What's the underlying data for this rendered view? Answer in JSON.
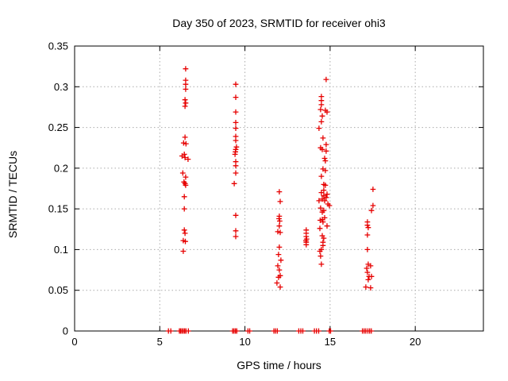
{
  "title": "Day 350 of 2023, SRMTID for receiver ohi3",
  "chart_data": {
    "type": "scatter",
    "title": "Day 350 of 2023, SRMTID for receiver ohi3",
    "xlabel": "GPS time / hours",
    "ylabel": "SRMTID / TECUs",
    "xlim": [
      0,
      24
    ],
    "ylim": [
      0,
      0.35
    ],
    "xticks": [
      0,
      5,
      10,
      15,
      20
    ],
    "xtick_labels": [
      "0",
      "5",
      "10",
      "15",
      "20"
    ],
    "yticks": [
      0,
      0.05,
      0.1,
      0.15,
      0.2,
      0.25,
      0.3,
      0.35
    ],
    "ytick_labels": [
      "0",
      "0.05",
      "0.1",
      "0.15",
      "0.2",
      "0.25",
      "0.3",
      "0.35"
    ],
    "grid": true,
    "legend": "none",
    "marker": "plus",
    "marker_color": "#e60000",
    "grid_color": "#aaaaaa",
    "axis_color": "#000000",
    "series": [
      {
        "name": "srmtid",
        "points": [
          [
            6.52,
            0.322
          ],
          [
            6.52,
            0.308
          ],
          [
            6.52,
            0.303
          ],
          [
            6.52,
            0.297
          ],
          [
            6.48,
            0.284
          ],
          [
            6.52,
            0.28
          ],
          [
            6.48,
            0.276
          ],
          [
            6.48,
            0.238
          ],
          [
            6.4,
            0.231
          ],
          [
            6.54,
            0.23
          ],
          [
            6.44,
            0.217
          ],
          [
            6.31,
            0.215
          ],
          [
            6.48,
            0.213
          ],
          [
            6.66,
            0.211
          ],
          [
            6.35,
            0.194
          ],
          [
            6.52,
            0.189
          ],
          [
            6.42,
            0.183
          ],
          [
            6.48,
            0.181
          ],
          [
            6.52,
            0.179
          ],
          [
            6.44,
            0.165
          ],
          [
            6.44,
            0.15
          ],
          [
            6.44,
            0.124
          ],
          [
            6.48,
            0.12
          ],
          [
            6.38,
            0.111
          ],
          [
            6.5,
            0.11
          ],
          [
            6.38,
            0.098
          ],
          [
            9.46,
            0.303
          ],
          [
            9.46,
            0.287
          ],
          [
            9.46,
            0.269
          ],
          [
            9.46,
            0.256
          ],
          [
            9.46,
            0.249
          ],
          [
            9.46,
            0.239
          ],
          [
            9.46,
            0.234
          ],
          [
            9.5,
            0.226
          ],
          [
            9.46,
            0.223
          ],
          [
            9.44,
            0.22
          ],
          [
            9.42,
            0.217
          ],
          [
            9.46,
            0.208
          ],
          [
            9.46,
            0.203
          ],
          [
            9.46,
            0.194
          ],
          [
            9.37,
            0.181
          ],
          [
            9.46,
            0.142
          ],
          [
            9.46,
            0.123
          ],
          [
            9.46,
            0.116
          ],
          [
            12.02,
            0.171
          ],
          [
            12.07,
            0.159
          ],
          [
            12.02,
            0.141
          ],
          [
            12.0,
            0.138
          ],
          [
            12.04,
            0.135
          ],
          [
            12.02,
            0.129
          ],
          [
            11.93,
            0.122
          ],
          [
            12.07,
            0.121
          ],
          [
            12.02,
            0.103
          ],
          [
            11.97,
            0.094
          ],
          [
            12.11,
            0.087
          ],
          [
            11.93,
            0.08
          ],
          [
            12.02,
            0.075
          ],
          [
            12.07,
            0.068
          ],
          [
            11.97,
            0.066
          ],
          [
            11.88,
            0.059
          ],
          [
            12.07,
            0.054
          ],
          [
            13.6,
            0.124
          ],
          [
            13.6,
            0.12
          ],
          [
            13.6,
            0.116
          ],
          [
            13.62,
            0.113
          ],
          [
            13.58,
            0.111
          ],
          [
            13.6,
            0.109
          ],
          [
            13.6,
            0.106
          ],
          [
            14.77,
            0.309
          ],
          [
            14.49,
            0.288
          ],
          [
            14.49,
            0.283
          ],
          [
            14.49,
            0.278
          ],
          [
            14.44,
            0.272
          ],
          [
            14.72,
            0.271
          ],
          [
            14.82,
            0.269
          ],
          [
            14.54,
            0.264
          ],
          [
            14.49,
            0.257
          ],
          [
            14.35,
            0.249
          ],
          [
            14.58,
            0.237
          ],
          [
            14.77,
            0.229
          ],
          [
            14.44,
            0.225
          ],
          [
            14.54,
            0.223
          ],
          [
            14.77,
            0.221
          ],
          [
            14.68,
            0.212
          ],
          [
            14.72,
            0.209
          ],
          [
            14.58,
            0.199
          ],
          [
            14.72,
            0.197
          ],
          [
            14.49,
            0.19
          ],
          [
            14.63,
            0.18
          ],
          [
            14.72,
            0.179
          ],
          [
            14.63,
            0.173
          ],
          [
            14.49,
            0.17
          ],
          [
            14.82,
            0.168
          ],
          [
            14.63,
            0.166
          ],
          [
            14.77,
            0.164
          ],
          [
            14.54,
            0.162
          ],
          [
            14.35,
            0.16
          ],
          [
            14.68,
            0.16
          ],
          [
            14.87,
            0.156
          ],
          [
            14.96,
            0.154
          ],
          [
            14.44,
            0.151
          ],
          [
            14.63,
            0.148
          ],
          [
            14.54,
            0.146
          ],
          [
            14.68,
            0.139
          ],
          [
            14.54,
            0.137
          ],
          [
            14.58,
            0.134
          ],
          [
            14.82,
            0.129
          ],
          [
            14.42,
            0.136
          ],
          [
            14.4,
            0.126
          ],
          [
            14.54,
            0.117
          ],
          [
            14.63,
            0.114
          ],
          [
            14.58,
            0.109
          ],
          [
            14.58,
            0.105
          ],
          [
            14.49,
            0.1
          ],
          [
            14.4,
            0.098
          ],
          [
            14.44,
            0.092
          ],
          [
            14.49,
            0.082
          ],
          [
            17.52,
            0.174
          ],
          [
            17.52,
            0.154
          ],
          [
            17.43,
            0.148
          ],
          [
            17.19,
            0.134
          ],
          [
            17.19,
            0.13
          ],
          [
            17.24,
            0.127
          ],
          [
            17.19,
            0.118
          ],
          [
            17.19,
            0.1
          ],
          [
            17.24,
            0.082
          ],
          [
            17.38,
            0.08
          ],
          [
            17.15,
            0.077
          ],
          [
            17.19,
            0.072
          ],
          [
            17.43,
            0.067
          ],
          [
            17.29,
            0.067
          ],
          [
            17.24,
            0.063
          ],
          [
            17.1,
            0.054
          ],
          [
            17.38,
            0.053
          ],
          [
            5.51,
            0
          ],
          [
            5.65,
            0
          ],
          [
            6.15,
            0
          ],
          [
            6.22,
            0
          ],
          [
            6.3,
            0
          ],
          [
            6.38,
            0
          ],
          [
            6.46,
            0
          ],
          [
            6.54,
            0
          ],
          [
            6.68,
            0
          ],
          [
            9.28,
            0
          ],
          [
            9.36,
            0
          ],
          [
            9.44,
            0
          ],
          [
            9.52,
            0
          ],
          [
            10.18,
            0
          ],
          [
            10.28,
            0
          ],
          [
            11.7,
            0
          ],
          [
            11.8,
            0
          ],
          [
            11.9,
            0
          ],
          [
            13.16,
            0
          ],
          [
            13.28,
            0
          ],
          [
            13.4,
            0
          ],
          [
            14.08,
            0
          ],
          [
            14.2,
            0
          ],
          [
            14.33,
            0
          ],
          [
            14.95,
            0
          ],
          [
            15.03,
            0
          ],
          [
            16.9,
            0
          ],
          [
            17.0,
            0
          ],
          [
            17.1,
            0
          ],
          [
            17.22,
            0
          ],
          [
            17.32,
            0
          ],
          [
            17.42,
            0
          ]
        ]
      }
    ]
  }
}
